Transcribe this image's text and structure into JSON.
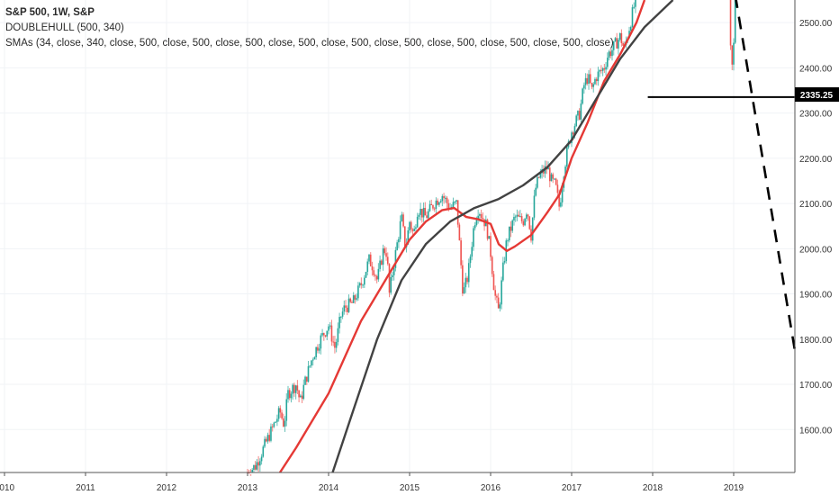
{
  "legend": {
    "title": "S&P 500, 1W, S&P",
    "line2": "DOUBLEHULL (500, 340)",
    "line3": "SMAs (34, close, 340, close, 500, close, 500, close, 500, close, 500, close, 500, close, 500, close, 500, close, 500, close, 500, close)"
  },
  "colors": {
    "up": "#26a69a",
    "down": "#ef5350",
    "sma_short": "#e53935",
    "sma_long": "#424242",
    "projection": "#000000",
    "hline": "#000000",
    "tag_bg": "#000000"
  },
  "price_tag": "2335.25",
  "chart_data": {
    "type": "candlestick",
    "title": "S&P 500, 1W, S&P",
    "x_tick_labels": [
      "2010",
      "2011",
      "2012",
      "2013",
      "2014",
      "2015",
      "2016",
      "2017",
      "2018",
      "2019"
    ],
    "y_tick_labels": [
      "1600.00",
      "1700.00",
      "1800.00",
      "1900.00",
      "2000.00",
      "2100.00",
      "2200.00",
      "2300.00",
      "2400.00",
      "2500.00"
    ],
    "x_range": [
      2010.0,
      2019.78
    ],
    "y_range": [
      1505,
      2550
    ],
    "horizontal_line": {
      "value": 2335.25,
      "from": 2017.94,
      "to": 2019.78
    },
    "projection_dashed": [
      [
        2019.02,
        2560
      ],
      [
        2019.76,
        1770
      ]
    ],
    "closes": [
      [
        2013.0,
        1505
      ],
      [
        2013.1,
        1520
      ],
      [
        2013.2,
        1560
      ],
      [
        2013.3,
        1600
      ],
      [
        2013.4,
        1640
      ],
      [
        2013.45,
        1610
      ],
      [
        2013.5,
        1680
      ],
      [
        2013.6,
        1700
      ],
      [
        2013.65,
        1660
      ],
      [
        2013.7,
        1700
      ],
      [
        2013.8,
        1760
      ],
      [
        2013.9,
        1800
      ],
      [
        2014.0,
        1830
      ],
      [
        2014.08,
        1780
      ],
      [
        2014.15,
        1850
      ],
      [
        2014.2,
        1870
      ],
      [
        2014.3,
        1880
      ],
      [
        2014.4,
        1920
      ],
      [
        2014.5,
        1975
      ],
      [
        2014.55,
        1960
      ],
      [
        2014.6,
        1930
      ],
      [
        2014.68,
        2000
      ],
      [
        2014.72,
        1990
      ],
      [
        2014.75,
        1900
      ],
      [
        2014.8,
        1960
      ],
      [
        2014.9,
        2070
      ],
      [
        2014.95,
        2000
      ],
      [
        2015.0,
        2060
      ],
      [
        2015.05,
        2030
      ],
      [
        2015.1,
        2090
      ],
      [
        2015.2,
        2070
      ],
      [
        2015.3,
        2100
      ],
      [
        2015.4,
        2120
      ],
      [
        2015.5,
        2090
      ],
      [
        2015.58,
        2100
      ],
      [
        2015.62,
        2000
      ],
      [
        2015.66,
        1900
      ],
      [
        2015.72,
        1940
      ],
      [
        2015.8,
        2060
      ],
      [
        2015.85,
        2090
      ],
      [
        2015.9,
        2070
      ],
      [
        2015.95,
        2050
      ],
      [
        2016.0,
        1990
      ],
      [
        2016.05,
        1900
      ],
      [
        2016.1,
        1860
      ],
      [
        2016.15,
        1950
      ],
      [
        2016.2,
        2020
      ],
      [
        2016.3,
        2070
      ],
      [
        2016.4,
        2060
      ],
      [
        2016.45,
        2090
      ],
      [
        2016.5,
        2030
      ],
      [
        2016.55,
        2130
      ],
      [
        2016.6,
        2160
      ],
      [
        2016.7,
        2180
      ],
      [
        2016.75,
        2150
      ],
      [
        2016.8,
        2140
      ],
      [
        2016.85,
        2090
      ],
      [
        2016.9,
        2170
      ],
      [
        2016.95,
        2220
      ],
      [
        2017.0,
        2260
      ],
      [
        2017.1,
        2300
      ],
      [
        2017.15,
        2360
      ],
      [
        2017.2,
        2380
      ],
      [
        2017.25,
        2350
      ],
      [
        2017.3,
        2380
      ],
      [
        2017.4,
        2400
      ],
      [
        2017.45,
        2430
      ],
      [
        2017.5,
        2440
      ],
      [
        2017.6,
        2470
      ],
      [
        2017.65,
        2440
      ],
      [
        2017.7,
        2480
      ],
      [
        2017.8,
        2560
      ],
      [
        2018.95,
        2530
      ],
      [
        2018.96,
        2440
      ],
      [
        2018.98,
        2400
      ],
      [
        2019.0,
        2450
      ],
      [
        2019.02,
        2560
      ]
    ],
    "sma_short_values": [
      [
        2013.4,
        1505
      ],
      [
        2013.6,
        1560
      ],
      [
        2013.8,
        1620
      ],
      [
        2014.0,
        1680
      ],
      [
        2014.2,
        1760
      ],
      [
        2014.4,
        1840
      ],
      [
        2014.6,
        1900
      ],
      [
        2014.8,
        1960
      ],
      [
        2015.0,
        2020
      ],
      [
        2015.2,
        2060
      ],
      [
        2015.4,
        2085
      ],
      [
        2015.55,
        2090
      ],
      [
        2015.7,
        2070
      ],
      [
        2015.85,
        2065
      ],
      [
        2016.0,
        2055
      ],
      [
        2016.1,
        2010
      ],
      [
        2016.2,
        1995
      ],
      [
        2016.3,
        2005
      ],
      [
        2016.5,
        2030
      ],
      [
        2016.7,
        2080
      ],
      [
        2016.85,
        2120
      ],
      [
        2017.0,
        2200
      ],
      [
        2017.2,
        2280
      ],
      [
        2017.4,
        2370
      ],
      [
        2017.6,
        2430
      ],
      [
        2017.8,
        2500
      ],
      [
        2017.9,
        2550
      ]
    ],
    "sma_long_values": [
      [
        2014.05,
        1505
      ],
      [
        2014.3,
        1640
      ],
      [
        2014.6,
        1800
      ],
      [
        2014.9,
        1930
      ],
      [
        2015.2,
        2010
      ],
      [
        2015.5,
        2060
      ],
      [
        2015.8,
        2090
      ],
      [
        2016.1,
        2110
      ],
      [
        2016.4,
        2140
      ],
      [
        2016.7,
        2180
      ],
      [
        2017.0,
        2240
      ],
      [
        2017.3,
        2330
      ],
      [
        2017.6,
        2420
      ],
      [
        2017.9,
        2490
      ],
      [
        2018.25,
        2550
      ]
    ]
  }
}
